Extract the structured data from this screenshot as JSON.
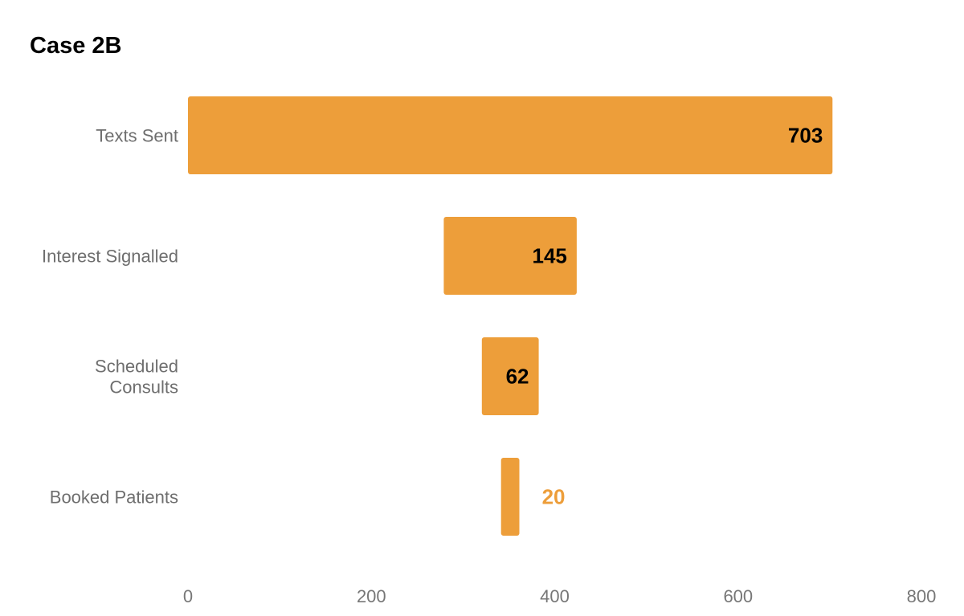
{
  "chart_data": {
    "type": "bar",
    "orientation": "horizontal",
    "style": "funnel",
    "title": "Case 2B",
    "xlabel": "",
    "ylabel": "",
    "categories": [
      [
        "Texts Sent"
      ],
      [
        "Interest Signalled"
      ],
      [
        "Scheduled",
        "Consults"
      ],
      [
        "Booked Patients"
      ]
    ],
    "values": [
      703,
      145,
      62,
      20
    ],
    "xlim": [
      0,
      800
    ],
    "x_ticks": [
      "0",
      "200",
      "400",
      "600",
      "800"
    ],
    "grid": false,
    "legend": "none",
    "colors": {
      "bar": "#ed9e3a",
      "label_inside": "#000000",
      "label_outside": "#ed9e3a"
    }
  }
}
